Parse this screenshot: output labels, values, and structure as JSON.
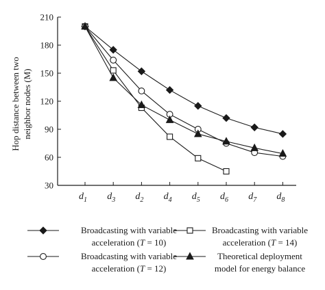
{
  "chart_data": {
    "type": "line",
    "ylabel_lines": [
      "Hop distance between two",
      "neighbor nodes (M)"
    ],
    "xlabel": "",
    "categories": [
      {
        "base": "d",
        "sub": "1"
      },
      {
        "base": "d",
        "sub": "3"
      },
      {
        "base": "d",
        "sub": "2"
      },
      {
        "base": "d",
        "sub": "4"
      },
      {
        "base": "d",
        "sub": "5"
      },
      {
        "base": "d",
        "sub": "6"
      },
      {
        "base": "d",
        "sub": "7"
      },
      {
        "base": "d",
        "sub": "8"
      }
    ],
    "ylim": [
      30,
      210
    ],
    "yticks": [
      30,
      60,
      90,
      120,
      150,
      180,
      210
    ],
    "grid": false,
    "legend_position": "bottom",
    "series": [
      {
        "name_lines": [
          "Broadcasting with variable",
          "acceleration (T = 10)"
        ],
        "marker": "diamond",
        "values": [
          200,
          175,
          152,
          132,
          115,
          102,
          92,
          85
        ]
      },
      {
        "name_lines": [
          "Broadcasting with variable",
          "acceleration (T = 14)"
        ],
        "marker": "square-open",
        "values": [
          200,
          153,
          113,
          82,
          59,
          45,
          null,
          null
        ]
      },
      {
        "name_lines": [
          "Broadcasting with variable",
          "acceleration (T = 12)"
        ],
        "marker": "circle-open",
        "values": [
          200,
          164,
          131,
          106,
          90,
          75,
          65,
          61
        ]
      },
      {
        "name_lines": [
          "Theoretical deployment",
          "model for energy balance"
        ],
        "marker": "triangle",
        "values": [
          200,
          145,
          116,
          100,
          85,
          77,
          70,
          64
        ]
      }
    ]
  }
}
